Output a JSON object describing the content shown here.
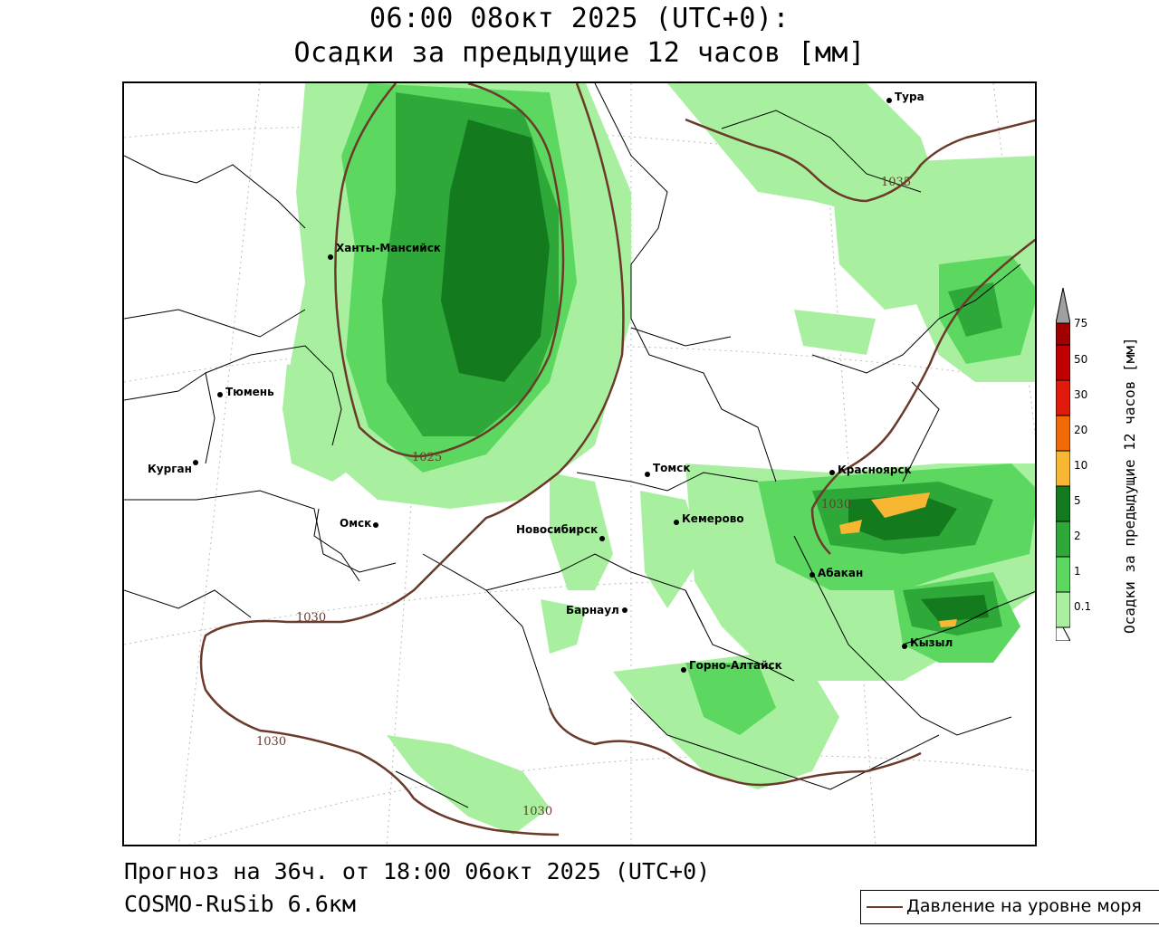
{
  "title": {
    "line1": "06:00 08окт 2025 (UTC+0):",
    "line2": "Осадки за предыдущие 12 часов [мм]"
  },
  "footer": {
    "forecast": "Прогноз на 36ч. от 18:00 06окт 2025 (UTC+0)",
    "model": "COSMO-RuSib 6.6км"
  },
  "legend": {
    "pressure_label": "Давление на уровне моря",
    "pressure_color": "#6b3a2a"
  },
  "colorbar": {
    "title": "Осадки за предыдущие 12 часов [мм]",
    "levels": [
      "0.1",
      "1",
      "2",
      "5",
      "10",
      "20",
      "30",
      "50",
      "75"
    ],
    "colors": [
      "#ffffff",
      "#a8f0a0",
      "#5cd860",
      "#2ea838",
      "#137a1e",
      "#f7b733",
      "#f26a06",
      "#e01b0b",
      "#a00000",
      "#a0a0a0"
    ]
  },
  "cities": [
    {
      "name": "Тура"
    },
    {
      "name": "Ханты-Мансийск"
    },
    {
      "name": "Тюмень"
    },
    {
      "name": "Курган"
    },
    {
      "name": "Омск"
    },
    {
      "name": "Томск"
    },
    {
      "name": "Новосибирск"
    },
    {
      "name": "Кемерово"
    },
    {
      "name": "Красноярск"
    },
    {
      "name": "Абакан"
    },
    {
      "name": "Барнаул"
    },
    {
      "name": "Горно-Алтайск"
    },
    {
      "name": "Кызыл"
    }
  ],
  "isobars": [
    "1035",
    "1025",
    "1030",
    "1030",
    "1030",
    "1030"
  ]
}
